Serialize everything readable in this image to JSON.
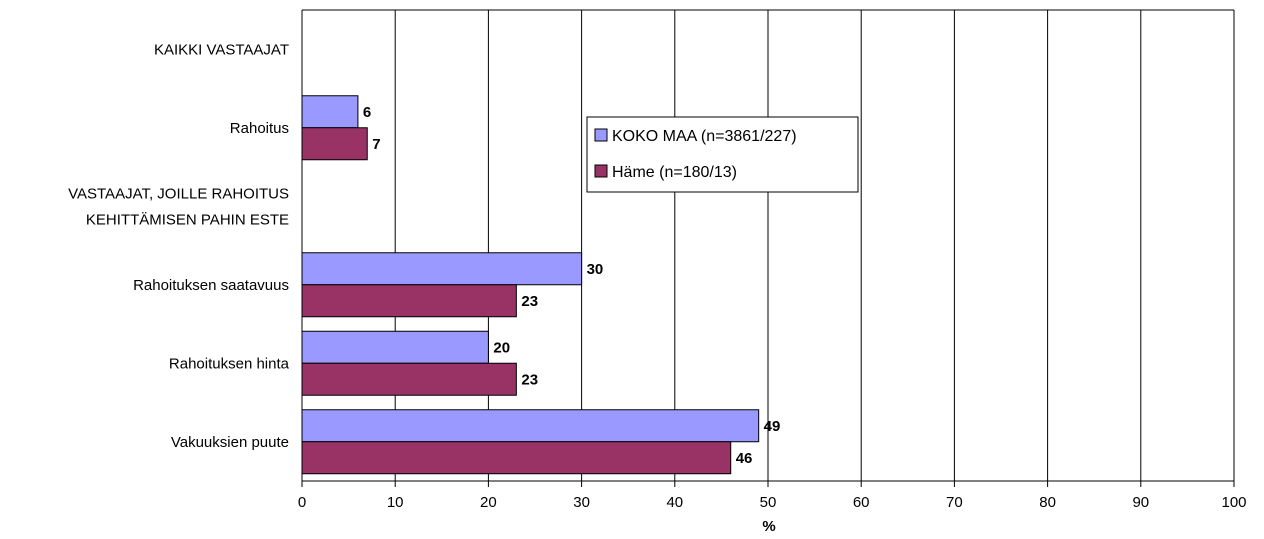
{
  "chart_data": {
    "type": "bar",
    "orientation": "horizontal",
    "categories": [
      [
        "KAIKKI VASTAAJAT"
      ],
      [
        "Rahoitus"
      ],
      [
        "VASTAAJAT, JOILLE RAHOITUS",
        "KEHITTÄMISEN PAHIN ESTE"
      ],
      [
        "Rahoituksen saatavuus"
      ],
      [
        "Rahoituksen hinta"
      ],
      [
        "Vakuuksien puute"
      ]
    ],
    "series": [
      {
        "name": "KOKO MAA (n=3861/227)",
        "color": "#9999ff",
        "values": [
          null,
          6,
          null,
          30,
          20,
          49
        ]
      },
      {
        "name": "Häme (n=180/13)",
        "color": "#993366",
        "values": [
          null,
          7,
          null,
          23,
          23,
          46
        ]
      }
    ],
    "title": "",
    "xlabel": "%",
    "ylabel": "",
    "xlim": [
      0,
      100
    ],
    "xticks": [
      0,
      10,
      20,
      30,
      40,
      50,
      60,
      70,
      80,
      90,
      100
    ],
    "grid": true,
    "legend_position": "inside-center"
  }
}
